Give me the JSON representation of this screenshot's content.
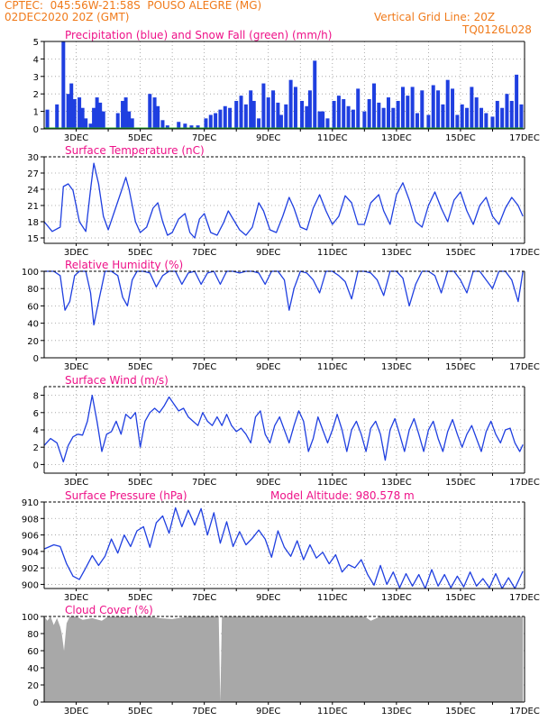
{
  "header": {
    "line1": "CPTEC:  045:56W-21:58S  POUSO ALEGRE (MG)",
    "line2": "02DEC2020 20Z (GMT)",
    "grid_note": "Vertical Grid Line: 20Z",
    "code": "TQ0126L028"
  },
  "colors": {
    "header": "#f07a1a",
    "title": "#ee1188",
    "series": "#1f3fe0",
    "snow": "#22aa22",
    "cloud": "#a8a8a8"
  },
  "x_ticks": [
    "3DEC",
    "5DEC",
    "7DEC",
    "9DEC",
    "11DEC",
    "13DEC",
    "15DEC",
    "17DEC"
  ],
  "chart_data": [
    {
      "type": "bar",
      "title": "Precipitation (blue) and Snow Fall (green) (mm/h)",
      "ylim": [
        0,
        5
      ],
      "yticks": [
        "0",
        "1",
        "2",
        "3",
        "4",
        "5"
      ],
      "series": [
        {
          "name": "Precipitation",
          "x": [
            2.1,
            2.4,
            2.6,
            2.75,
            2.85,
            2.95,
            3.1,
            3.2,
            3.3,
            3.45,
            3.55,
            3.65,
            3.75,
            3.85,
            4.3,
            4.45,
            4.55,
            4.65,
            4.75,
            5.3,
            5.45,
            5.55,
            5.7,
            5.85,
            6.2,
            6.4,
            6.6,
            6.8,
            7.05,
            7.2,
            7.35,
            7.5,
            7.65,
            7.8,
            8.0,
            8.15,
            8.3,
            8.45,
            8.55,
            8.7,
            8.85,
            9.0,
            9.15,
            9.3,
            9.4,
            9.55,
            9.7,
            9.85,
            10.05,
            10.2,
            10.3,
            10.45,
            10.6,
            10.7,
            10.85,
            11.05,
            11.2,
            11.35,
            11.5,
            11.65,
            11.8,
            12.0,
            12.15,
            12.3,
            12.45,
            12.6,
            12.75,
            12.9,
            13.05,
            13.2,
            13.35,
            13.5,
            13.65,
            13.8,
            14.0,
            14.15,
            14.3,
            14.45,
            14.6,
            14.75,
            14.9,
            15.05,
            15.2,
            15.35,
            15.5,
            15.65,
            15.8,
            16.0,
            16.15,
            16.3,
            16.45,
            16.6,
            16.75,
            16.9
          ],
          "values": [
            1.1,
            1.4,
            5.0,
            2.0,
            2.6,
            1.7,
            1.8,
            1.2,
            0.6,
            0.3,
            1.2,
            1.8,
            1.5,
            1.0,
            0.9,
            1.6,
            1.8,
            1.0,
            0.6,
            2.0,
            1.8,
            1.3,
            0.5,
            0.2,
            0.4,
            0.3,
            0.2,
            0.2,
            0.6,
            0.8,
            0.9,
            1.1,
            1.3,
            1.2,
            1.6,
            1.9,
            1.4,
            2.2,
            1.6,
            0.6,
            2.6,
            1.8,
            2.2,
            1.5,
            0.8,
            1.4,
            2.8,
            2.4,
            1.6,
            1.3,
            2.2,
            3.9,
            1.0,
            1.0,
            0.6,
            1.6,
            1.9,
            1.7,
            1.3,
            1.1,
            2.3,
            1.0,
            1.7,
            2.6,
            1.5,
            1.2,
            1.8,
            1.2,
            1.6,
            2.4,
            1.9,
            2.4,
            0.9,
            2.2,
            0.8,
            2.5,
            2.2,
            1.4,
            2.8,
            2.3,
            0.8,
            1.4,
            1.2,
            2.4,
            1.8,
            1.2,
            0.9,
            0.7,
            1.6,
            1.2,
            2.0,
            1.6,
            3.1,
            1.4
          ]
        },
        {
          "name": "Snow Fall",
          "x": [
            2.0,
            16.95
          ],
          "values": [
            0,
            0
          ]
        }
      ]
    },
    {
      "type": "line",
      "title": "Surface Temperature (nC)",
      "ylim": [
        14,
        30
      ],
      "yticks": [
        "15",
        "18",
        "21",
        "24",
        "27",
        "30"
      ],
      "series": [
        {
          "name": "Temperature",
          "x": [
            2.0,
            2.25,
            2.5,
            2.6,
            2.75,
            2.9,
            3.1,
            3.3,
            3.45,
            3.55,
            3.7,
            3.85,
            4.0,
            4.2,
            4.4,
            4.55,
            4.65,
            4.85,
            5.0,
            5.2,
            5.4,
            5.55,
            5.7,
            5.85,
            6.0,
            6.2,
            6.4,
            6.55,
            6.7,
            6.85,
            7.0,
            7.2,
            7.4,
            7.6,
            7.75,
            7.9,
            8.1,
            8.3,
            8.5,
            8.7,
            8.85,
            9.05,
            9.25,
            9.45,
            9.65,
            9.8,
            10.0,
            10.2,
            10.4,
            10.6,
            10.8,
            11.0,
            11.2,
            11.4,
            11.6,
            11.8,
            12.0,
            12.2,
            12.45,
            12.6,
            12.8,
            13.0,
            13.2,
            13.4,
            13.6,
            13.8,
            14.0,
            14.2,
            14.4,
            14.6,
            14.8,
            15.0,
            15.2,
            15.4,
            15.6,
            15.8,
            16.0,
            16.2,
            16.4,
            16.6,
            16.8,
            16.95
          ],
          "values": [
            18.0,
            16.2,
            17.0,
            24.5,
            25.0,
            23.8,
            18.0,
            16.2,
            24.0,
            28.8,
            25.0,
            19.0,
            16.5,
            20.0,
            23.5,
            26.2,
            24.0,
            18.0,
            16.0,
            17.0,
            20.5,
            21.5,
            18.0,
            15.5,
            16.0,
            18.5,
            19.5,
            16.0,
            15.0,
            18.5,
            19.5,
            16.0,
            15.5,
            17.8,
            20.0,
            18.5,
            16.5,
            15.5,
            17.0,
            21.5,
            20.0,
            16.5,
            16.0,
            19.0,
            22.5,
            20.5,
            17.0,
            16.5,
            20.5,
            23.0,
            20.0,
            17.5,
            19.0,
            22.8,
            21.5,
            17.5,
            17.5,
            21.5,
            23.0,
            20.0,
            17.5,
            23.0,
            25.2,
            22.0,
            18.0,
            17.0,
            21.0,
            23.5,
            20.5,
            18.0,
            22.0,
            23.5,
            20.0,
            17.5,
            21.0,
            22.5,
            19.0,
            17.5,
            20.5,
            22.5,
            21.0,
            19.0
          ]
        }
      ]
    },
    {
      "type": "line",
      "title": "Relative Humidity (%)",
      "ylim": [
        0,
        100
      ],
      "yticks": [
        "0",
        "20",
        "40",
        "60",
        "80",
        "100"
      ],
      "series": [
        {
          "name": "Relative Humidity",
          "x": [
            2.0,
            2.3,
            2.5,
            2.65,
            2.8,
            2.95,
            3.1,
            3.3,
            3.45,
            3.55,
            3.7,
            3.9,
            4.1,
            4.3,
            4.45,
            4.6,
            4.75,
            4.9,
            5.1,
            5.3,
            5.5,
            5.7,
            5.9,
            6.1,
            6.3,
            6.5,
            6.7,
            6.9,
            7.1,
            7.3,
            7.5,
            7.7,
            7.9,
            8.1,
            8.3,
            8.5,
            8.7,
            8.9,
            9.1,
            9.3,
            9.5,
            9.65,
            9.8,
            10.0,
            10.2,
            10.4,
            10.6,
            10.8,
            11.0,
            11.2,
            11.4,
            11.6,
            11.8,
            12.0,
            12.2,
            12.4,
            12.6,
            12.8,
            13.0,
            13.2,
            13.4,
            13.6,
            13.8,
            14.0,
            14.2,
            14.4,
            14.6,
            14.8,
            15.0,
            15.2,
            15.4,
            15.6,
            15.8,
            16.0,
            16.2,
            16.4,
            16.6,
            16.8,
            16.95
          ],
          "values": [
            100,
            100,
            95,
            55,
            65,
            95,
            100,
            100,
            75,
            38,
            65,
            100,
            100,
            95,
            70,
            60,
            90,
            100,
            100,
            98,
            82,
            95,
            100,
            100,
            85,
            98,
            100,
            85,
            98,
            100,
            85,
            100,
            100,
            98,
            100,
            100,
            98,
            85,
            100,
            100,
            90,
            55,
            80,
            100,
            98,
            90,
            75,
            100,
            100,
            95,
            88,
            68,
            100,
            100,
            98,
            90,
            72,
            100,
            100,
            92,
            60,
            85,
            100,
            100,
            95,
            75,
            100,
            100,
            90,
            75,
            100,
            100,
            90,
            80,
            100,
            100,
            90,
            65,
            100
          ]
        }
      ]
    },
    {
      "type": "line",
      "title": "Surface Wind (m/s)",
      "ylim": [
        -1,
        9
      ],
      "yticks": [
        "0",
        "2",
        "4",
        "6",
        "8"
      ],
      "series": [
        {
          "name": "Wind speed",
          "x": [
            2.0,
            2.2,
            2.4,
            2.6,
            2.75,
            2.9,
            3.05,
            3.2,
            3.35,
            3.5,
            3.65,
            3.8,
            3.95,
            4.1,
            4.25,
            4.4,
            4.55,
            4.7,
            4.85,
            5.0,
            5.15,
            5.3,
            5.45,
            5.6,
            5.75,
            5.9,
            6.05,
            6.2,
            6.35,
            6.5,
            6.65,
            6.8,
            6.95,
            7.1,
            7.25,
            7.4,
            7.55,
            7.7,
            7.85,
            8.0,
            8.15,
            8.3,
            8.45,
            8.6,
            8.75,
            8.9,
            9.05,
            9.2,
            9.35,
            9.5,
            9.65,
            9.8,
            9.95,
            10.1,
            10.25,
            10.4,
            10.55,
            10.7,
            10.85,
            11.0,
            11.15,
            11.3,
            11.45,
            11.6,
            11.75,
            11.9,
            12.05,
            12.2,
            12.35,
            12.5,
            12.65,
            12.8,
            12.95,
            13.1,
            13.25,
            13.4,
            13.55,
            13.7,
            13.85,
            14.0,
            14.15,
            14.3,
            14.45,
            14.6,
            14.75,
            14.9,
            15.05,
            15.2,
            15.35,
            15.5,
            15.65,
            15.8,
            15.95,
            16.1,
            16.25,
            16.4,
            16.55,
            16.7,
            16.85,
            16.95
          ],
          "values": [
            2.2,
            3.0,
            2.5,
            0.3,
            2.2,
            3.2,
            3.5,
            3.4,
            5.0,
            8.0,
            5.0,
            1.5,
            3.5,
            3.8,
            5.0,
            3.5,
            5.8,
            5.3,
            6.0,
            2.0,
            5.0,
            6.0,
            6.5,
            6.0,
            6.8,
            7.8,
            7.0,
            6.2,
            6.5,
            5.5,
            5.0,
            4.5,
            6.0,
            5.0,
            4.5,
            5.5,
            4.5,
            5.8,
            4.5,
            3.8,
            4.2,
            3.5,
            2.5,
            5.5,
            6.2,
            3.5,
            2.5,
            4.5,
            5.5,
            4.0,
            2.5,
            4.5,
            6.2,
            5.0,
            1.5,
            3.0,
            5.5,
            4.0,
            2.5,
            4.0,
            5.8,
            4.0,
            1.5,
            4.0,
            5.0,
            3.5,
            1.5,
            4.2,
            5.0,
            3.5,
            0.5,
            4.0,
            5.3,
            3.5,
            1.5,
            4.0,
            5.3,
            3.5,
            1.5,
            4.0,
            5.0,
            3.0,
            1.5,
            3.8,
            5.2,
            3.5,
            2.0,
            3.5,
            4.5,
            3.0,
            1.5,
            3.8,
            5.0,
            3.5,
            2.5,
            4.0,
            4.2,
            2.5,
            1.5,
            2.3
          ]
        }
      ]
    },
    {
      "type": "line",
      "title": "Surface Pressure (hPa)",
      "annotation": "Model Altitude: 980.578 m",
      "ylim": [
        899.5,
        910
      ],
      "yticks": [
        "900",
        "902",
        "904",
        "906",
        "908",
        "910"
      ],
      "series": [
        {
          "name": "Pressure",
          "x": [
            2.0,
            2.3,
            2.5,
            2.7,
            2.9,
            3.1,
            3.3,
            3.5,
            3.7,
            3.9,
            4.1,
            4.3,
            4.5,
            4.7,
            4.9,
            5.1,
            5.3,
            5.5,
            5.7,
            5.9,
            6.1,
            6.3,
            6.5,
            6.7,
            6.9,
            7.1,
            7.3,
            7.5,
            7.7,
            7.9,
            8.1,
            8.3,
            8.5,
            8.7,
            8.9,
            9.1,
            9.3,
            9.5,
            9.7,
            9.9,
            10.1,
            10.3,
            10.5,
            10.7,
            10.9,
            11.1,
            11.3,
            11.5,
            11.7,
            11.9,
            12.1,
            12.3,
            12.5,
            12.7,
            12.9,
            13.1,
            13.3,
            13.5,
            13.7,
            13.9,
            14.1,
            14.3,
            14.5,
            14.7,
            14.9,
            15.1,
            15.3,
            15.5,
            15.7,
            15.9,
            16.1,
            16.3,
            16.5,
            16.7,
            16.95
          ],
          "values": [
            904.3,
            904.8,
            904.6,
            902.5,
            901.0,
            900.6,
            902.0,
            903.5,
            902.3,
            903.4,
            905.5,
            903.8,
            906.0,
            904.6,
            906.5,
            907.0,
            904.5,
            907.5,
            908.3,
            906.2,
            909.3,
            907.0,
            909.0,
            907.2,
            909.2,
            906.0,
            908.7,
            905.0,
            907.6,
            904.6,
            906.4,
            904.8,
            905.6,
            906.6,
            905.5,
            903.3,
            906.5,
            904.5,
            903.4,
            905.3,
            903.0,
            904.8,
            903.2,
            903.9,
            902.5,
            903.6,
            901.5,
            902.4,
            902.0,
            903.0,
            901.2,
            899.9,
            902.3,
            900.0,
            901.5,
            899.6,
            901.3,
            899.8,
            901.2,
            899.5,
            901.8,
            899.8,
            901.2,
            899.6,
            901.0,
            899.7,
            901.5,
            899.8,
            900.7,
            899.6,
            901.3,
            899.5,
            900.8,
            899.5,
            901.6
          ]
        }
      ]
    },
    {
      "type": "area",
      "title": "Cloud Cover (%)",
      "ylim": [
        0,
        100
      ],
      "yticks": [
        "0",
        "20",
        "40",
        "60",
        "80",
        "100"
      ],
      "series": [
        {
          "name": "Cloud Cover",
          "x": [
            2.0,
            2.1,
            2.2,
            2.3,
            2.4,
            2.5,
            2.55,
            2.62,
            2.7,
            2.8,
            3.0,
            3.2,
            3.5,
            3.8,
            4.0,
            4.2,
            4.5,
            4.8,
            5.0,
            5.3,
            5.6,
            6.0,
            6.5,
            7.0,
            7.45,
            7.5,
            7.55,
            8.0,
            8.5,
            9.0,
            10.0,
            11.0,
            11.5,
            11.8,
            12.0,
            12.2,
            12.5,
            13.0,
            14.0,
            15.0,
            16.0,
            16.95
          ],
          "values": [
            100,
            95,
            100,
            90,
            98,
            88,
            80,
            60,
            92,
            100,
            100,
            96,
            98,
            95,
            100,
            100,
            100,
            100,
            100,
            100,
            98,
            97,
            100,
            100,
            100,
            0,
            100,
            100,
            100,
            100,
            100,
            100,
            100,
            100,
            100,
            95,
            100,
            100,
            100,
            100,
            100,
            100
          ]
        }
      ]
    }
  ]
}
